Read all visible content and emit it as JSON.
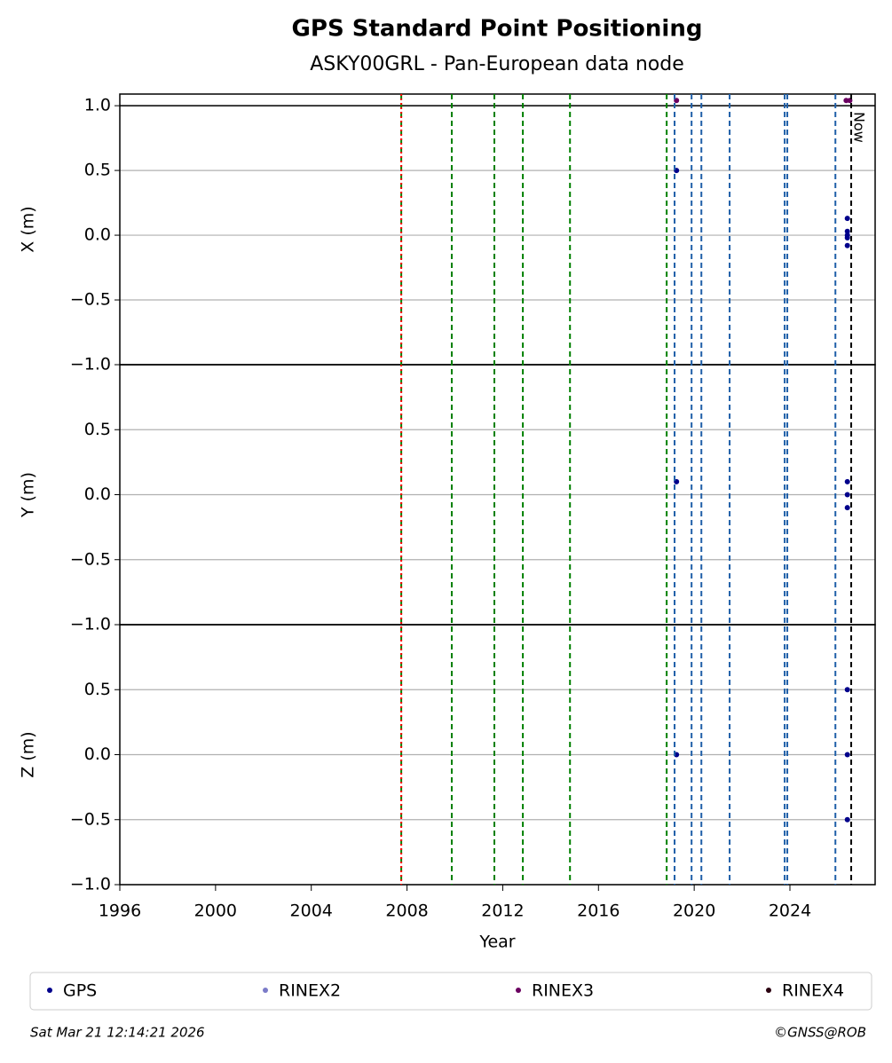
{
  "chart_data": [
    {
      "type": "scatter",
      "title": "GPS Standard Point Positioning",
      "subtitle": "ASKY00GRL - Pan-European data node",
      "ylabel": "X (m)",
      "ylim": [
        -1.0,
        1.09
      ],
      "yticks": [
        {
          "value": -1.0,
          "label": "−1.0"
        },
        {
          "value": -0.5,
          "label": "−0.5"
        },
        {
          "value": 0,
          "label": "0.0"
        },
        0.5,
        {
          "value": 1.0,
          "label": "1.0"
        }
      ],
      "hlines": [
        1.0
      ],
      "grid": true,
      "vlines": [
        {
          "x": 2007.76,
          "color": "#008000"
        },
        {
          "x": 2007.76,
          "color": "#ff0000",
          "style": "dotted"
        },
        {
          "x": 2009.87,
          "color": "#008000"
        },
        {
          "x": 2011.65,
          "color": "#008000"
        },
        {
          "x": 2012.84,
          "color": "#008000"
        },
        {
          "x": 2014.81,
          "color": "#008000"
        },
        {
          "x": 2018.85,
          "color": "#008000"
        },
        {
          "x": 2019.18,
          "color": "#1f5fa8"
        },
        {
          "x": 2019.89,
          "color": "#1f5fa8"
        },
        {
          "x": 2020.3,
          "color": "#1f5fa8"
        },
        {
          "x": 2021.48,
          "color": "#1f5fa8"
        },
        {
          "x": 2023.78,
          "color": "#1f5fa8"
        },
        {
          "x": 2023.89,
          "color": "#1f5fa8"
        },
        {
          "x": 2025.9,
          "color": "#1f5fa8"
        },
        {
          "x": 2026.56,
          "color": "#000000",
          "label": "Now"
        }
      ],
      "series": [
        {
          "name": "GPS",
          "color": "#00008b",
          "x": [
            2019.26,
            2026.4,
            2026.4,
            2026.4,
            2026.4,
            2026.4
          ],
          "values": [
            0.5,
            0.13,
            0.03,
            0,
            -0.02,
            -0.08
          ]
        },
        {
          "name": "RINEX2",
          "color": "#7b7bc8",
          "x": [],
          "values": []
        },
        {
          "name": "RINEX3",
          "color": "#6a0060",
          "x": [
            2019.26,
            2026.35,
            2026.5
          ],
          "values": [
            1.04,
            1.04,
            1.04
          ]
        },
        {
          "name": "RINEX4",
          "color": "#2a0010",
          "x": [],
          "values": []
        }
      ]
    },
    {
      "type": "scatter",
      "ylabel": "Y (m)",
      "ylim": [
        -1.0,
        1.0
      ],
      "grid": true,
      "yticks": [
        {
          "value": -1.0,
          "label": "−1.0"
        },
        {
          "value": -0.5,
          "label": "−0.5"
        },
        {
          "value": 0,
          "label": "0.0"
        },
        0.5
      ],
      "series": [
        {
          "name": "GPS",
          "color": "#00008b",
          "x": [
            2019.26,
            2026.4,
            2026.4,
            2026.4
          ],
          "values": [
            0.1,
            0.1,
            0,
            -0.1
          ]
        }
      ]
    },
    {
      "type": "scatter",
      "ylabel": "Z (m)",
      "xlabel": "Year",
      "ylim": [
        -1.0,
        1.0
      ],
      "xlim": [
        1996,
        2027.56
      ],
      "grid": true,
      "xticks": [
        1996,
        2000,
        2004,
        2008,
        2012,
        2016,
        2020,
        2024
      ],
      "yticks": [
        {
          "value": -1.0,
          "label": "−1.0"
        },
        {
          "value": -0.5,
          "label": "−0.5"
        },
        {
          "value": 0,
          "label": "0.0"
        },
        0.5
      ],
      "series": [
        {
          "name": "GPS",
          "color": "#00008b",
          "x": [
            2019.26,
            2026.4,
            2026.4,
            2026.4
          ],
          "values": [
            0,
            0.5,
            0,
            -0.5
          ]
        }
      ]
    }
  ],
  "footer": {
    "left": "Sat Mar 21 12:14:21 2026",
    "right": "©GNSS@ROB"
  }
}
